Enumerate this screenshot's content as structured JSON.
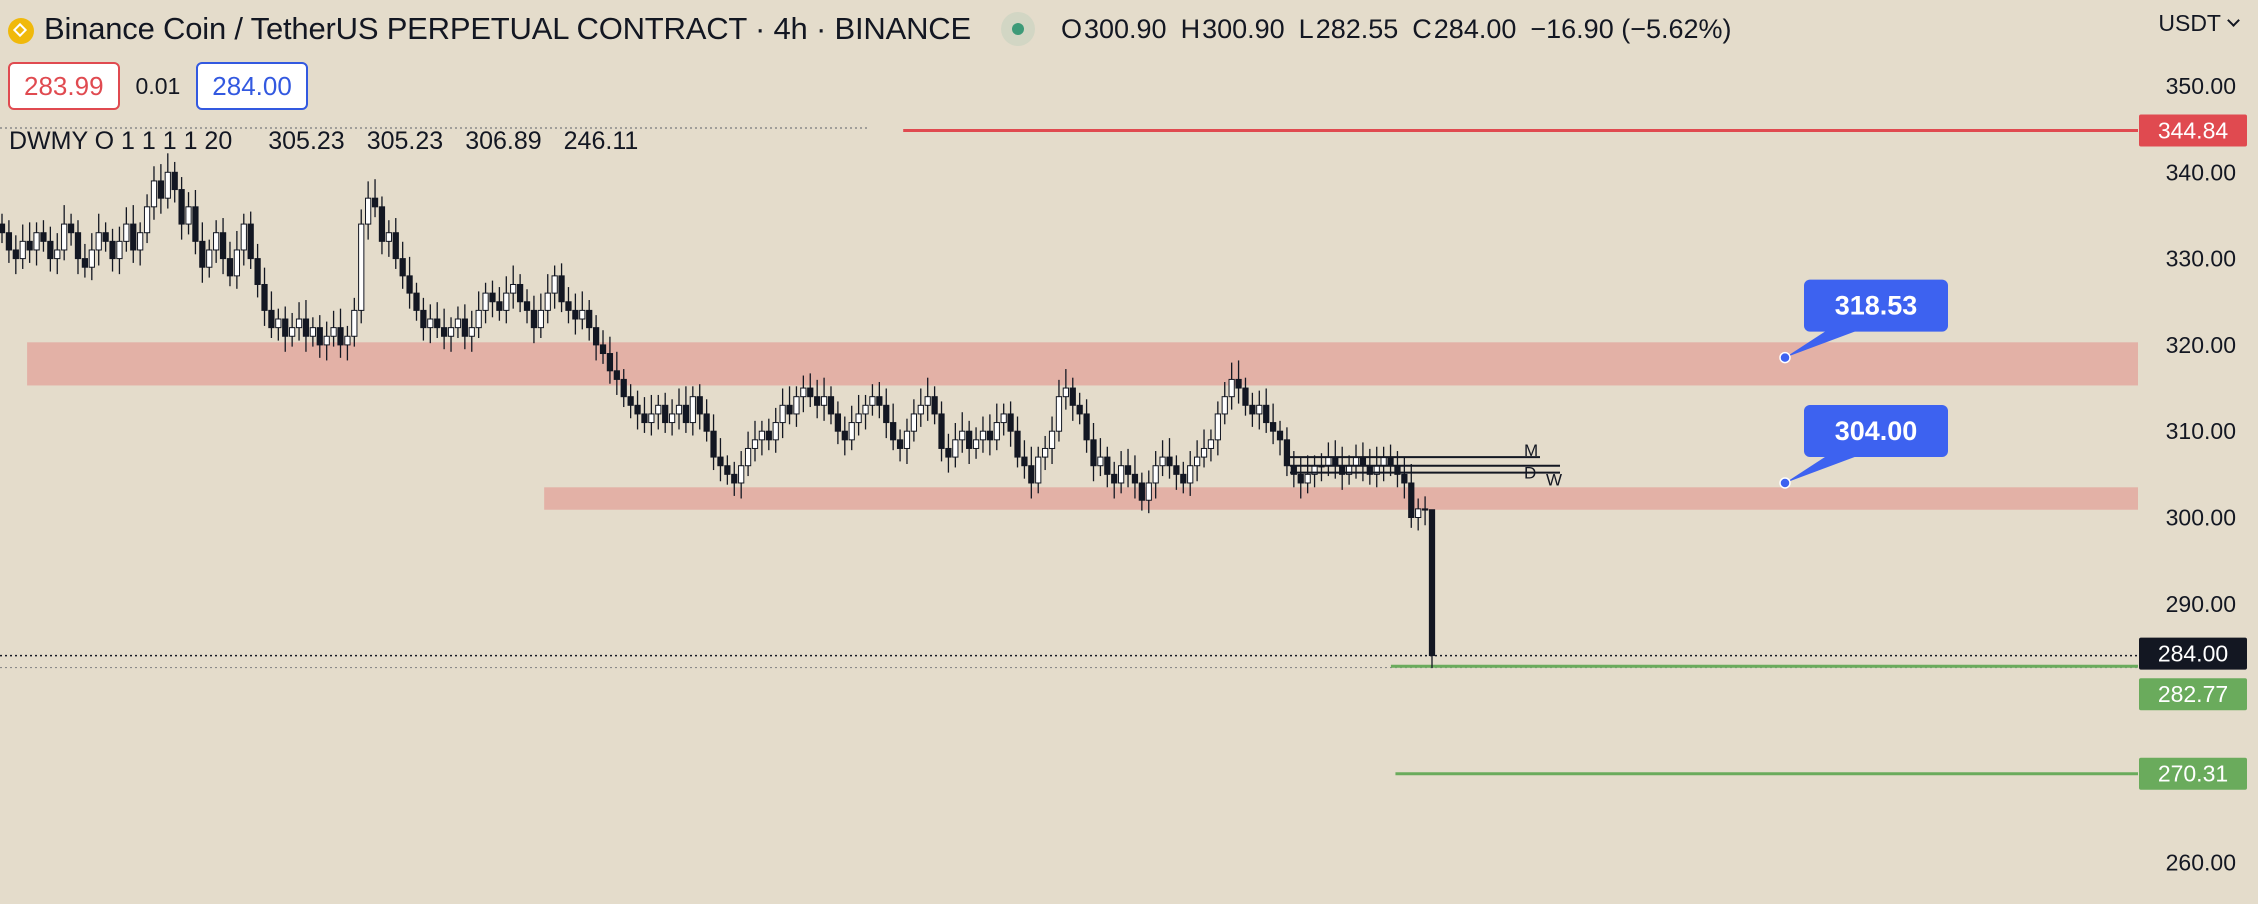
{
  "header": {
    "title": "Binance Coin / TetherUS PERPETUAL CONTRACT · 4h · BINANCE",
    "ohlc": {
      "o_label": "O",
      "o_value": "300.90",
      "h_label": "H",
      "h_value": "300.90",
      "l_label": "L",
      "l_value": "282.55",
      "c_label": "C",
      "c_value": "284.00",
      "change": "−16.90 (−5.62%)"
    },
    "currency": "USDT"
  },
  "order_panel": {
    "sell_price": "283.99",
    "spread": "0.01",
    "buy_price": "284.00"
  },
  "indicator": {
    "label": "DWMY O 1 1 1 1 20",
    "values": [
      "305.23",
      "305.23",
      "306.89",
      "246.11"
    ]
  },
  "colors": {
    "background": "#e4dccb",
    "zone_fill": "#e3a9a0",
    "red_line": "#e04a50",
    "green_line": "#6aab5c",
    "callout_blue": "#3d62f0",
    "candle": "#131722"
  },
  "chart_data": {
    "type": "candlestick",
    "timeframe": "4h",
    "y_axis": {
      "min": 255,
      "max": 355,
      "tick_labels": [
        "350.00",
        "340.00",
        "330.00",
        "320.00",
        "310.00",
        "300.00",
        "290.00",
        "260.00"
      ],
      "position": "right"
    },
    "price_labels": [
      {
        "value": 344.84,
        "text": "344.84",
        "color": "#e04a50"
      },
      {
        "value": 284.0,
        "text": "284.00",
        "color": "#131722"
      },
      {
        "value": 282.77,
        "text": "282.77",
        "color": "#6aab5c"
      },
      {
        "value": 270.31,
        "text": "270.31",
        "color": "#6aab5c"
      }
    ],
    "horizontal_lines": [
      {
        "value": 344.84,
        "color": "#e04a50",
        "start_fraction": 0.4
      },
      {
        "value": 282.77,
        "color": "#6aab5c",
        "start_fraction": 0.616
      },
      {
        "value": 270.31,
        "color": "#6aab5c",
        "start_fraction": 0.618
      }
    ],
    "zones": [
      {
        "top": 320.3,
        "bottom": 315.3,
        "start_fraction": 0.012
      },
      {
        "top": 303.5,
        "bottom": 300.9,
        "start_fraction": 0.241
      }
    ],
    "callouts": [
      {
        "text": "318.53",
        "value": 318.53
      },
      {
        "text": "304.00",
        "value": 304.0
      }
    ],
    "level_marks": [
      {
        "label": "M",
        "value": 307.0
      },
      {
        "label": "D",
        "value": 306.0
      },
      {
        "label": "W",
        "value": 305.2
      }
    ],
    "close_series": [
      333,
      331,
      330,
      332,
      331,
      333,
      332,
      330,
      331,
      334,
      333,
      330,
      329,
      331,
      333,
      332,
      330,
      332,
      334,
      331,
      333,
      336,
      339,
      337,
      340,
      338,
      334,
      336,
      332,
      329,
      331,
      333,
      330,
      328,
      331,
      334,
      330,
      327,
      324,
      322,
      323,
      321,
      322,
      323,
      321,
      322,
      320,
      321,
      322,
      320,
      321,
      324,
      334,
      337,
      336,
      332,
      333,
      330,
      328,
      326,
      324,
      322,
      323,
      322,
      321,
      322,
      323,
      321,
      322,
      324,
      326,
      325,
      324,
      326,
      327,
      325,
      324,
      322,
      324,
      326,
      328,
      325,
      324,
      323,
      324,
      322,
      320,
      319,
      317,
      316,
      314,
      313,
      312,
      311,
      312,
      313,
      311,
      312,
      313,
      311,
      314,
      312,
      310,
      307,
      306,
      305,
      304,
      306,
      308,
      309,
      310,
      309,
      311,
      313,
      312,
      314,
      315,
      314,
      313,
      314,
      312,
      310,
      309,
      311,
      312,
      313,
      314,
      313,
      311,
      309,
      308,
      310,
      312,
      313,
      314,
      312,
      308,
      307,
      309,
      310,
      308,
      309,
      310,
      309,
      311,
      312,
      310,
      307,
      306,
      304,
      307,
      308,
      310,
      314,
      315,
      313,
      312,
      309,
      306,
      307,
      305,
      304,
      306,
      305,
      304,
      302,
      304,
      306,
      307,
      306,
      305,
      304,
      306,
      307,
      308,
      309,
      312,
      314,
      316,
      315,
      313,
      312,
      313,
      311,
      310,
      309,
      306,
      305,
      304,
      305,
      306,
      306,
      307,
      306,
      305,
      306,
      307,
      306,
      305,
      306,
      307,
      306,
      305,
      304,
      300,
      301,
      300.9,
      284
    ]
  }
}
